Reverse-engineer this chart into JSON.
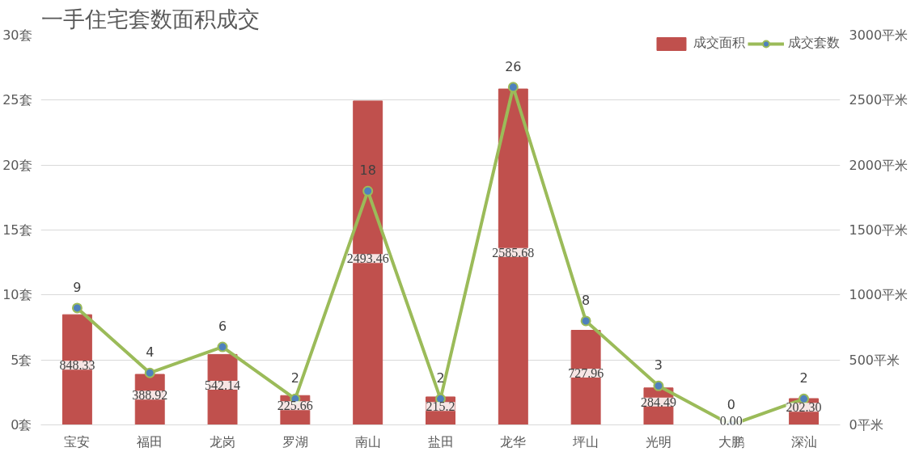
{
  "chart_data": {
    "type": "bar",
    "title": "一手住宅套数面积成交",
    "categories": [
      "宝安",
      "福田",
      "龙岗",
      "罗湖",
      "南山",
      "盐田",
      "龙华",
      "坪山",
      "光明",
      "大鹏",
      "深汕"
    ],
    "series": [
      {
        "name": "成交面积",
        "axis": "y2",
        "color": "#c0504d",
        "values": [
          848.33,
          388.92,
          542.14,
          225.66,
          2493.46,
          215.2,
          2585.68,
          727.96,
          284.49,
          0.0,
          202.3
        ],
        "value_labels": [
          "848.33",
          "388.92",
          "542.14",
          "225.66",
          "2493.46",
          "215.2",
          "2585.68",
          "727.96",
          "284.49",
          "0.00",
          "202.30"
        ]
      },
      {
        "name": "成交套数",
        "type": "line",
        "color": "#9bbb59",
        "marker": "circle",
        "values": [
          9,
          4,
          6,
          2,
          18,
          2,
          26,
          8,
          3,
          0,
          2
        ],
        "value_labels": [
          "9",
          "4",
          "6",
          "2",
          "18",
          "2",
          "26",
          "8",
          "3",
          "0",
          "2"
        ]
      }
    ],
    "ylim": [
      0,
      30
    ],
    "yticks": [
      {
        "value": 0,
        "label": "0套"
      },
      {
        "value": 5,
        "label": "5套"
      },
      {
        "value": 10,
        "label": "10套"
      },
      {
        "value": 15,
        "label": "15套"
      },
      {
        "value": 20,
        "label": "20套"
      },
      {
        "value": 25,
        "label": "25套"
      },
      {
        "value": 30,
        "label": "30套"
      }
    ],
    "y2lim": [
      0,
      3000
    ],
    "y2ticks": [
      {
        "value": 0,
        "label": "0平米"
      },
      {
        "value": 500,
        "label": "500平米"
      },
      {
        "value": 1000,
        "label": "1000平米"
      },
      {
        "value": 1500,
        "label": "1500平米"
      },
      {
        "value": 2000,
        "label": "2000平米"
      },
      {
        "value": 2500,
        "label": "2500平米"
      },
      {
        "value": 3000,
        "label": "3000平米"
      }
    ],
    "grid": "y",
    "legend": "top right"
  }
}
